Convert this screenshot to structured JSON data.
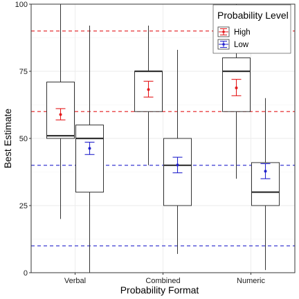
{
  "chart_data": {
    "type": "boxplot",
    "xlabel": "Probability Format",
    "ylabel": "Best Estimate",
    "ylim": [
      0,
      100
    ],
    "yticks": [
      0,
      25,
      50,
      75,
      100
    ],
    "categories": [
      "Verbal",
      "Combined",
      "Numeric"
    ],
    "grid": true,
    "legend": {
      "title": "Probability Level",
      "position": "top-right"
    },
    "series": [
      {
        "name": "High",
        "color": "#e41a1c",
        "boxes": [
          {
            "category": "Verbal",
            "whisker_low": 20,
            "q1": 50,
            "median": 51,
            "q3": 71,
            "whisker_high": 100
          },
          {
            "category": "Combined",
            "whisker_low": 40,
            "q1": 60,
            "median": 75,
            "q3": 75,
            "whisker_high": 92
          },
          {
            "category": "Numeric",
            "whisker_low": 35,
            "q1": 60,
            "median": 75,
            "q3": 80,
            "whisker_high": 100
          }
        ],
        "means": [
          58.9,
          68.2,
          68.8
        ],
        "ci_low": [
          56.9,
          65.4,
          65.9
        ],
        "ci_high": [
          61.1,
          71.3,
          72.0
        ]
      },
      {
        "name": "Low",
        "color": "#2222cc",
        "boxes": [
          {
            "category": "Verbal",
            "whisker_low": 0,
            "q1": 30,
            "median": 50,
            "q3": 55,
            "whisker_high": 92
          },
          {
            "category": "Combined",
            "whisker_low": 7,
            "q1": 25,
            "median": 40,
            "q3": 50,
            "whisker_high": 83
          },
          {
            "category": "Numeric",
            "whisker_low": 1,
            "q1": 25,
            "median": 30,
            "q3": 41,
            "whisker_high": 65
          }
        ],
        "means": [
          46.3,
          40.1,
          37.8
        ],
        "ci_low": [
          44.0,
          37.2,
          35.0
        ],
        "ci_high": [
          48.6,
          43.0,
          40.6
        ]
      }
    ],
    "reference_lines": [
      {
        "series": "High",
        "values": [
          90,
          60
        ]
      },
      {
        "series": "Low",
        "values": [
          40,
          10
        ]
      }
    ]
  }
}
